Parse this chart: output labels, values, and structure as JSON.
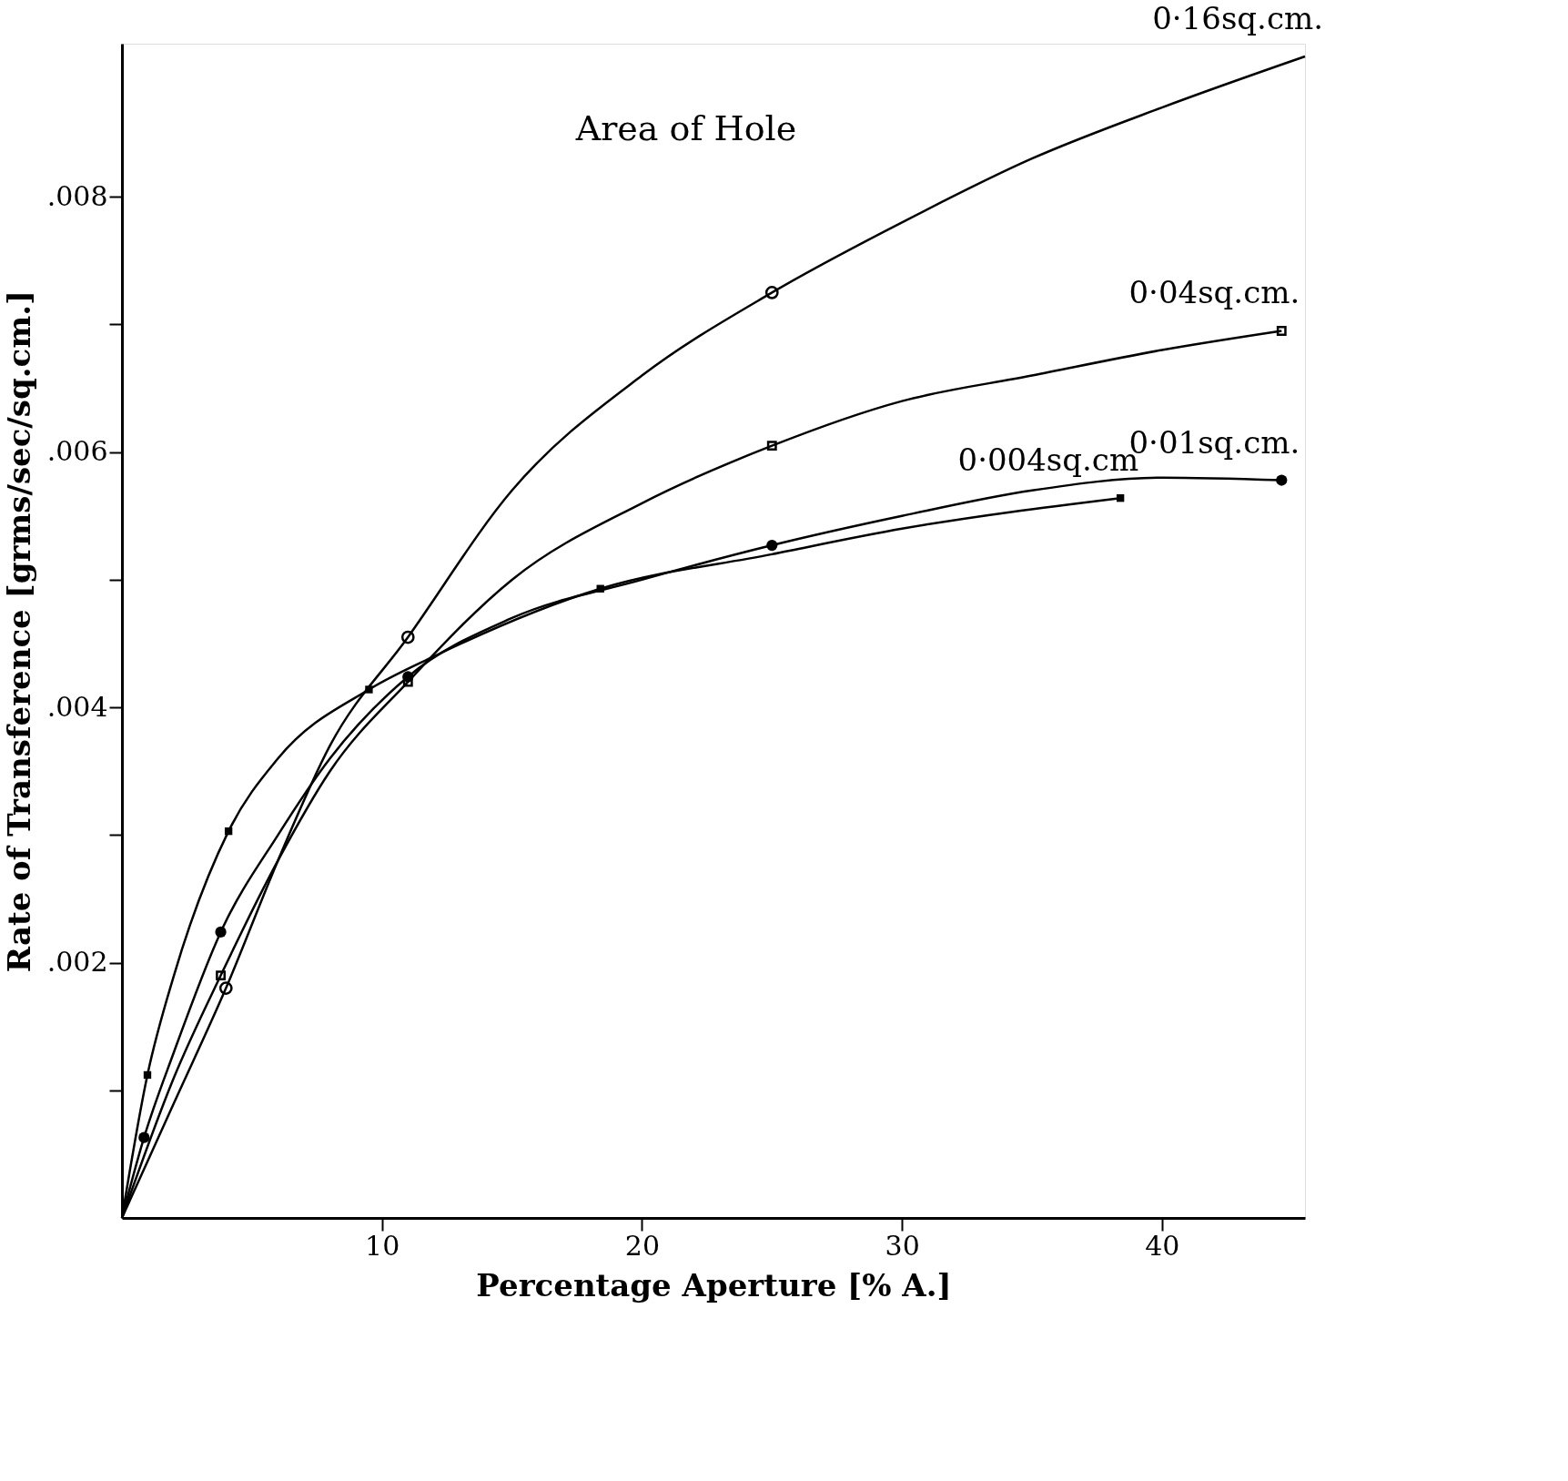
{
  "chart_data": {
    "type": "line",
    "legend_title": "Area of Hole",
    "xlabel": "Percentage Aperture [% A.]",
    "ylabel": "Rate of Transference [grms/sec/sq.cm.]",
    "xlim": [
      0,
      45.5
    ],
    "ylim": [
      0,
      0.0092
    ],
    "xticks": [
      10,
      20,
      30,
      40
    ],
    "yticks": [
      {
        "value": 0.001,
        "label": null
      },
      {
        "value": 0.002,
        "label": ".002"
      },
      {
        "value": 0.003,
        "label": null
      },
      {
        "value": 0.004,
        "label": ".004"
      },
      {
        "value": 0.005,
        "label": null
      },
      {
        "value": 0.006,
        "label": ".006"
      },
      {
        "value": 0.007,
        "label": null
      },
      {
        "value": 0.008,
        "label": ".008"
      }
    ],
    "grid": false,
    "legend": false,
    "line_style": "solid",
    "series": [
      {
        "name": "0·16sq.cm.",
        "color": "#000000",
        "marker": "none",
        "x": [
          0,
          2,
          4,
          6,
          8,
          11,
          15,
          20,
          25,
          30,
          35,
          40,
          45.5
        ],
        "values": [
          0,
          0.0009,
          0.0018,
          0.0028,
          0.0037,
          0.00455,
          0.0057,
          0.0066,
          0.00725,
          0.0078,
          0.0083,
          0.0087,
          0.0091
        ]
      },
      {
        "name": "0·04sq.cm.",
        "color": "#000000",
        "marker": "none",
        "x": [
          0,
          2,
          3.8,
          6,
          8,
          11,
          15,
          20,
          25,
          30,
          35,
          40,
          44.6
        ],
        "values": [
          0,
          0.0011,
          0.0019,
          0.0028,
          0.0035,
          0.0042,
          0.005,
          0.0056,
          0.00605,
          0.0064,
          0.0066,
          0.0068,
          0.00695
        ]
      },
      {
        "name": "0·01sq.cm.",
        "color": "#000000",
        "marker": "none",
        "x": [
          0,
          0.85,
          2,
          3.8,
          6,
          8,
          11,
          15,
          20,
          25,
          30,
          35,
          40,
          44.6
        ],
        "values": [
          0,
          0.00063,
          0.0013,
          0.00224,
          0.003,
          0.0036,
          0.00424,
          0.0047,
          0.005,
          0.00527,
          0.0055,
          0.0057,
          0.0058,
          0.00578
        ]
      },
      {
        "name": "0·004sq.cm",
        "color": "#000000",
        "marker": "none",
        "x": [
          0,
          0.98,
          2,
          4.1,
          6,
          9.5,
          12,
          18.4,
          25,
          30,
          38.4
        ],
        "values": [
          0,
          0.00112,
          0.0019,
          0.00303,
          0.0036,
          0.00414,
          0.0044,
          0.00493,
          0.0052,
          0.0054,
          0.00564
        ]
      },
      {
        "type": "scatter",
        "color": "#000000",
        "marker": "circle",
        "x": [
          4,
          11,
          25
        ],
        "values": [
          0.0018,
          0.00455,
          0.00725
        ]
      },
      {
        "type": "scatter",
        "color": "#000000",
        "marker": "square",
        "x": [
          3.8,
          11,
          25,
          44.6
        ],
        "values": [
          0.0019,
          0.0042,
          0.00605,
          0.00695
        ]
      },
      {
        "type": "scatter",
        "color": "#000000",
        "marker": "circle",
        "x": [
          0.85,
          3.8,
          11,
          25,
          44.6
        ],
        "values": [
          0.00063,
          0.00224,
          0.00424,
          0.00527,
          0.00578
        ]
      },
      {
        "type": "scatter",
        "color": "#000000",
        "marker": "square",
        "x": [
          0.98,
          4.1,
          9.5,
          18.4,
          38.4
        ],
        "values": [
          0.00112,
          0.00303,
          0.00414,
          0.00493,
          0.00564
        ]
      }
    ]
  }
}
